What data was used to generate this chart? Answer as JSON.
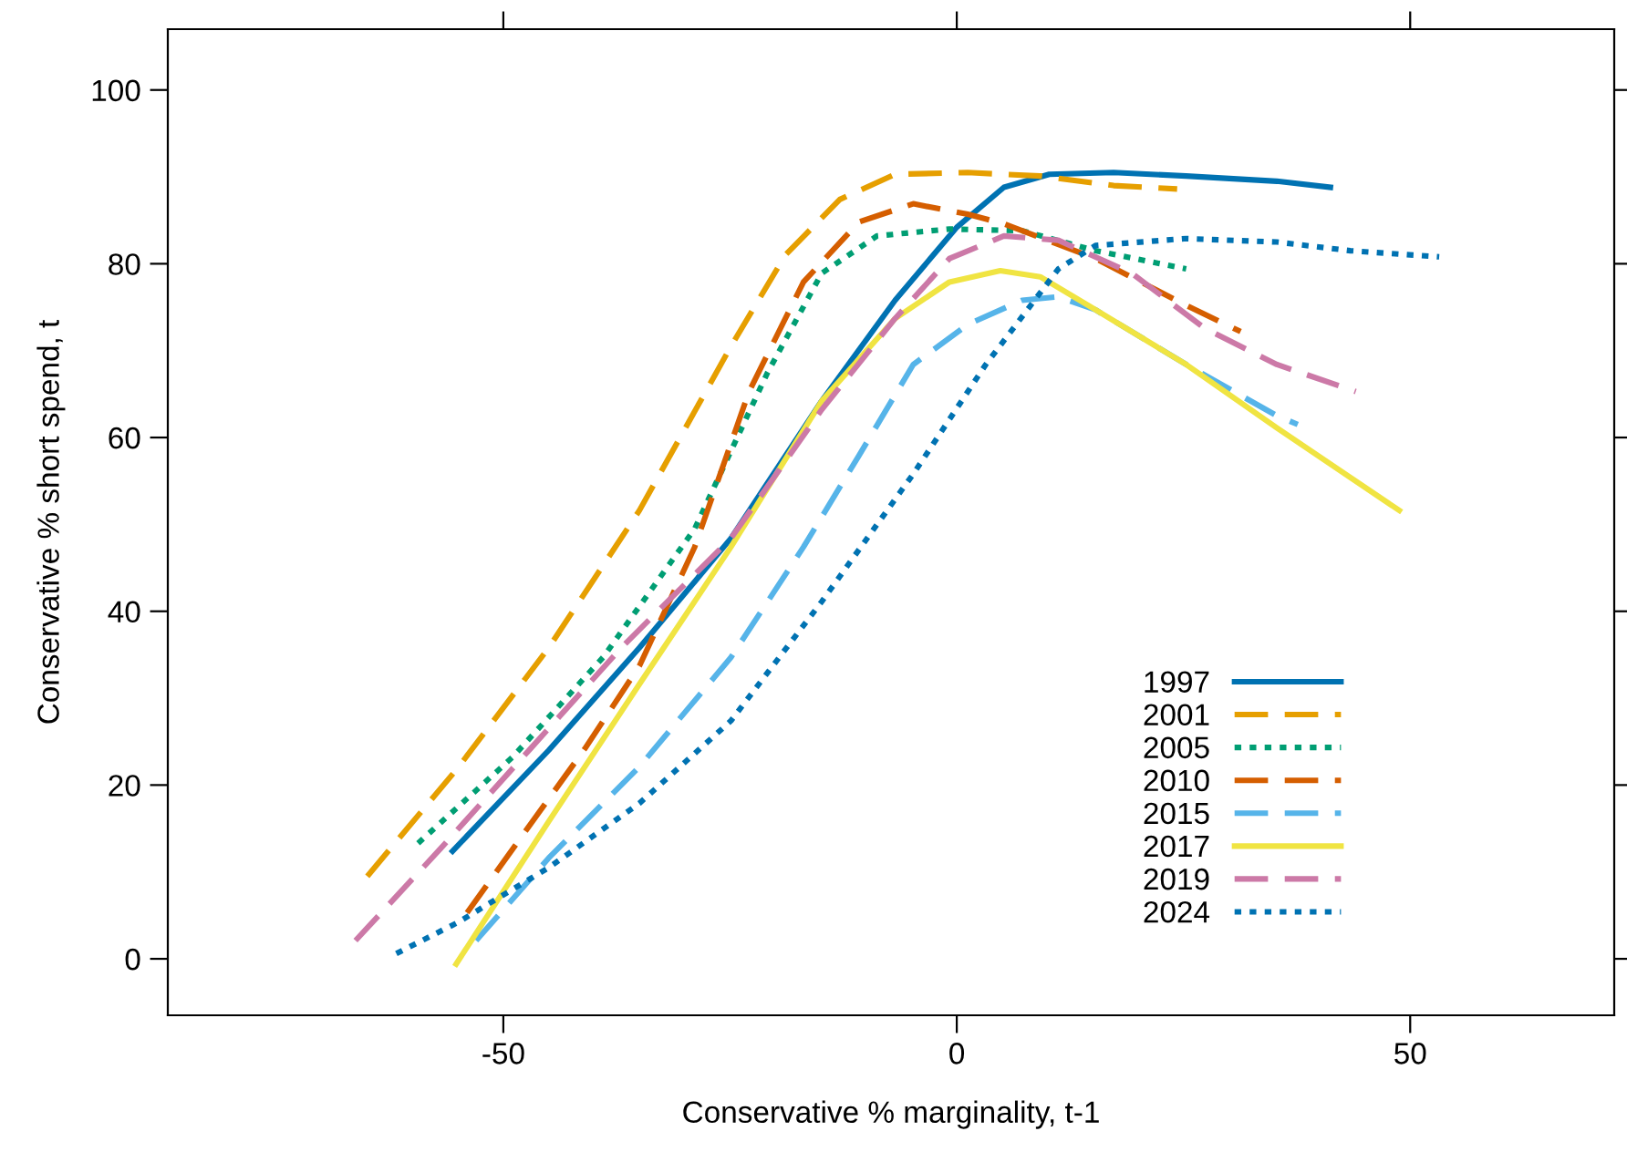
{
  "chart_data": {
    "type": "line",
    "xlabel": "Conservative % marginality, t-1",
    "ylabel": "Conservative % short spend, t",
    "xlim": [
      -87,
      72.5
    ],
    "ylim": [
      -6.5,
      107
    ],
    "xticks": [
      -50,
      0,
      50
    ],
    "yticks": [
      0,
      20,
      40,
      60,
      80,
      100
    ],
    "grid": false,
    "legend": "bottom right",
    "series": [
      {
        "name": "1997",
        "color": "#0072b2",
        "line_style": "solid",
        "x": [
          -55.6,
          -45,
          -35,
          -24.9,
          -14.9,
          -6.8,
          0,
          5.2,
          10.2,
          17.3,
          25.3,
          35.3,
          41.2
        ],
        "values": [
          12.4,
          24,
          35.8,
          48.4,
          64.2,
          75.8,
          84.2,
          88.8,
          90.3,
          90.5,
          90.1,
          89.5,
          88.8
        ]
      },
      {
        "name": "2001",
        "color": "#e69f00",
        "line_style": "dashed",
        "x": [
          -65,
          -55,
          -45,
          -35,
          -24.9,
          -18.9,
          -12.9,
          -6.8,
          1.2,
          9.2,
          17.3,
          24.3
        ],
        "values": [
          9.5,
          22,
          35.8,
          51.6,
          70.5,
          81,
          87.4,
          90.3,
          90.5,
          90.1,
          89,
          88.6
        ]
      },
      {
        "name": "2005",
        "color": "#009e73",
        "line_style": "dotted",
        "x": [
          -59.4,
          -49,
          -39,
          -28.9,
          -20.9,
          -14.9,
          -8.8,
          -0.8,
          7.2,
          15.3,
          25.3
        ],
        "values": [
          13.3,
          23.2,
          34.7,
          49.5,
          67.4,
          78.9,
          83.2,
          84,
          83.8,
          81.5,
          79.4
        ]
      },
      {
        "name": "2010",
        "color": "#d55e00",
        "line_style": "dashed",
        "x": [
          -54,
          -49,
          -41,
          -35,
          -28.9,
          -22.9,
          -16.9,
          -10.8,
          -4.8,
          1.2,
          5.2,
          15.3,
          25.3,
          31.3
        ],
        "values": [
          5.3,
          12.6,
          24.2,
          33.7,
          47.4,
          65.3,
          77.9,
          84.8,
          86.9,
          85.7,
          84.6,
          80.6,
          75.2,
          72.2
        ]
      },
      {
        "name": "2015",
        "color": "#56b4e9",
        "line_style": "dashed",
        "x": [
          -53,
          -45,
          -35,
          -24.9,
          -16.9,
          -10.8,
          -4.8,
          1.2,
          7.2,
          11.2,
          15.3,
          25.3,
          35.3,
          37.6
        ],
        "values": [
          2.1,
          11.6,
          22.1,
          34.7,
          47.4,
          57.9,
          68.4,
          73,
          75.8,
          76.2,
          74.7,
          68.4,
          62.5,
          61.5
        ]
      },
      {
        "name": "2017",
        "color": "#f0e442",
        "line_style": "solid",
        "x": [
          -55.2,
          -45,
          -35,
          -24.9,
          -14.9,
          -6.8,
          -0.8,
          4.8,
          9.2,
          15.3,
          25.3,
          35.3,
          48.8
        ],
        "values": [
          -0.6,
          15.8,
          31.6,
          47.4,
          64.2,
          73.7,
          77.9,
          79.2,
          78.5,
          74.7,
          68.4,
          61.1,
          51.6
        ]
      },
      {
        "name": "2019",
        "color": "#cc79a7",
        "line_style": "dashed",
        "x": [
          -66.3,
          -57,
          -47,
          -37,
          -24.9,
          -14.9,
          -6.8,
          -0.8,
          5.2,
          11.2,
          19.3,
          27.3,
          35.3,
          44
        ],
        "values": [
          2.1,
          12.6,
          24.2,
          35.8,
          48.4,
          63.2,
          73.7,
          80.6,
          83.2,
          82.7,
          78.9,
          72.6,
          68.4,
          65.3
        ]
      },
      {
        "name": "2024",
        "color": "#0072b2",
        "line_style": "dotted",
        "x": [
          -61.8,
          -55,
          -45,
          -35,
          -24.9,
          -14.9,
          -4.8,
          3.2,
          11.2,
          15.3,
          25.3,
          35.3,
          43.4,
          53.2
        ],
        "values": [
          0.6,
          4.2,
          10.5,
          17.9,
          27.4,
          41.1,
          55.8,
          68.4,
          79.4,
          82.1,
          82.9,
          82.5,
          81.5,
          80.8
        ]
      }
    ]
  }
}
